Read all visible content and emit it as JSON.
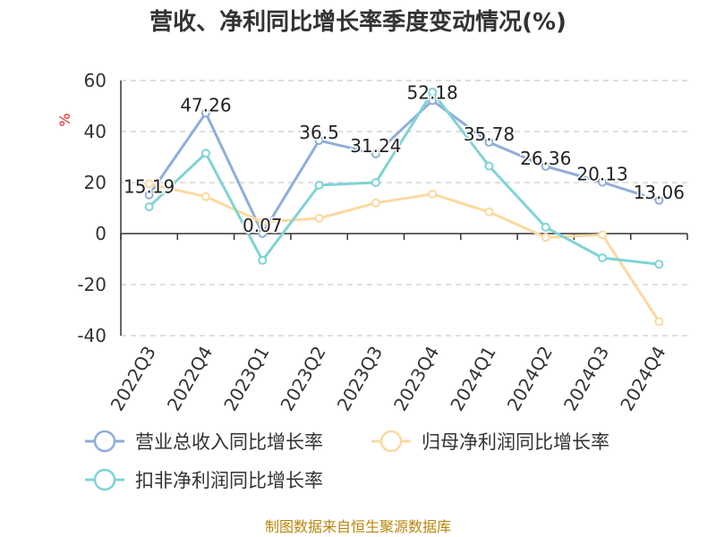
{
  "chart_data": {
    "type": "line",
    "title": "营收、净利同比增长率季度变动情况(%)",
    "unit_label": "%",
    "categories": [
      "2022Q3",
      "2022Q4",
      "2023Q1",
      "2023Q2",
      "2023Q3",
      "2023Q4",
      "2024Q1",
      "2024Q2",
      "2024Q3",
      "2024Q4"
    ],
    "ylim": [
      -40,
      60
    ],
    "yticks": [
      60,
      40,
      20,
      0,
      -20,
      -40
    ],
    "ytick_labels": [
      "60",
      "40",
      "20",
      "0",
      "-20",
      "-40"
    ],
    "grid": true,
    "legend_position": "bottom",
    "series": [
      {
        "name": "营业总收入同比增长率",
        "color": "#8fadd9",
        "values": [
          15.19,
          47.26,
          0.07,
          36.5,
          31.24,
          52.18,
          35.78,
          26.36,
          20.13,
          13.06
        ],
        "labels": [
          "15.19",
          "47.26",
          "0.07",
          "36.5",
          "31.24",
          "52.18",
          "35.78",
          "26.36",
          "20.13",
          "13.06"
        ]
      },
      {
        "name": "归母净利润同比增长率",
        "color": "#fcd9a0",
        "values": [
          19.5,
          14.5,
          4.5,
          6.0,
          12.0,
          15.5,
          8.5,
          -1.5,
          -0.5,
          -34.5
        ]
      },
      {
        "name": "扣非净利润同比增长率",
        "color": "#7fd3d6",
        "values": [
          10.5,
          31.5,
          -10.5,
          19.0,
          20.0,
          55.5,
          26.5,
          2.5,
          -9.5,
          -12.0
        ]
      }
    ]
  },
  "source_text": "制图数据来自恒生聚源数据库"
}
